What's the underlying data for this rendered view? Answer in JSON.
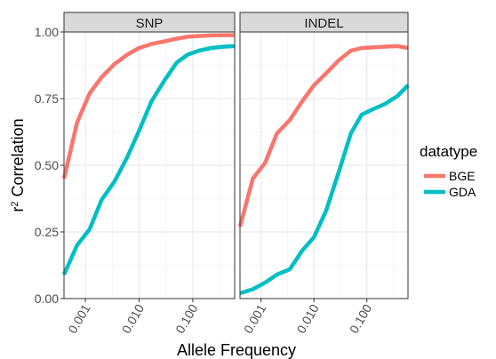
{
  "chart_data": {
    "type": "line",
    "facets": [
      "SNP",
      "INDEL"
    ],
    "x": [
      0.0004,
      0.0007,
      0.0012,
      0.002,
      0.0035,
      0.006,
      0.01,
      0.017,
      0.03,
      0.05,
      0.08,
      0.13,
      0.22,
      0.38,
      0.6
    ],
    "x_scale": "log10",
    "xlim": [
      0.0004,
      0.6
    ],
    "x_ticks": [
      0.001,
      0.01,
      0.1
    ],
    "x_tick_labels": [
      "0.001",
      "0.010",
      "0.100"
    ],
    "ylim": [
      0,
      1
    ],
    "y_ticks": [
      0,
      0.25,
      0.5,
      0.75,
      1
    ],
    "y_tick_labels": [
      "0.00",
      "0.25",
      "0.50",
      "0.75",
      "1.00"
    ],
    "xlabel": "Allele Frequency",
    "ylabel_base": "r",
    "ylabel_sup": "2",
    "ylabel_rest": " Correlation",
    "grid": true,
    "legend": {
      "title": "datatype",
      "position": "right",
      "entries": [
        {
          "name": "BGE",
          "color": "#F8766D"
        },
        {
          "name": "GDA",
          "color": "#00BFC4"
        }
      ]
    },
    "panels": [
      {
        "name": "SNP",
        "series": [
          {
            "name": "BGE",
            "values": [
              0.45,
              0.66,
              0.77,
              0.83,
              0.88,
              0.915,
              0.94,
              0.955,
              0.965,
              0.975,
              0.982,
              0.985,
              0.987,
              0.988,
              0.988
            ]
          },
          {
            "name": "GDA",
            "values": [
              0.09,
              0.2,
              0.26,
              0.37,
              0.44,
              0.53,
              0.63,
              0.74,
              0.82,
              0.885,
              0.915,
              0.93,
              0.94,
              0.945,
              0.947
            ]
          }
        ]
      },
      {
        "name": "INDEL",
        "series": [
          {
            "name": "BGE",
            "values": [
              0.27,
              0.45,
              0.51,
              0.62,
              0.67,
              0.74,
              0.8,
              0.845,
              0.895,
              0.93,
              0.94,
              0.942,
              0.945,
              0.947,
              0.94
            ]
          },
          {
            "name": "GDA",
            "values": [
              0.02,
              0.035,
              0.06,
              0.09,
              0.11,
              0.18,
              0.23,
              0.33,
              0.48,
              0.62,
              0.69,
              0.71,
              0.73,
              0.76,
              0.8
            ]
          }
        ]
      }
    ]
  }
}
